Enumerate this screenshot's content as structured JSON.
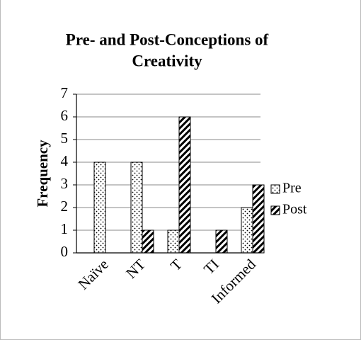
{
  "chart_data": {
    "type": "bar",
    "title": [
      "Pre- and Post-Conceptions of",
      "Creativity"
    ],
    "y_label": "Frequency",
    "categories": [
      "Naïve",
      "NT",
      "T",
      "TI",
      "Informed"
    ],
    "series": [
      {
        "name": "Pre",
        "color": "#000000",
        "pattern": "dots",
        "values": [
          4,
          4,
          1,
          0,
          2
        ]
      },
      {
        "name": "Post",
        "color": "#000000",
        "pattern": "diagonal",
        "values": [
          0,
          1,
          6,
          1,
          3
        ]
      }
    ],
    "ylim": [
      0,
      7
    ],
    "yticks": [
      0,
      1,
      2,
      3,
      4,
      5,
      6,
      7
    ],
    "grid": true,
    "legend": "right"
  }
}
